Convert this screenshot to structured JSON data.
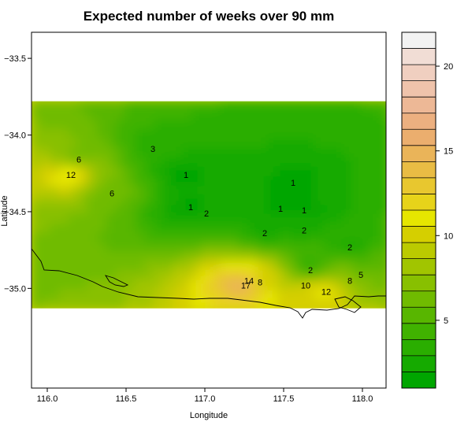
{
  "chart_data": {
    "type": "filled-contour",
    "title": "Expected number of weeks over 90 mm",
    "xlabel": "Longitude",
    "ylabel": "Latitude",
    "xlim": [
      115.9,
      118.15
    ],
    "ylim": [
      -35.65,
      -33.33
    ],
    "xticks": [
      "116.0",
      "116.5",
      "117.0",
      "117.5",
      "118.0"
    ],
    "yticks": [
      "-33.5",
      "-34.0",
      "-34.5",
      "-35.0"
    ],
    "data_extent": {
      "lon": [
        115.9,
        118.15
      ],
      "lat": [
        -35.13,
        -33.78
      ]
    },
    "colorbar": {
      "range": [
        1,
        22
      ],
      "ticks": [
        "5",
        "10",
        "15",
        "20"
      ],
      "colors": [
        "#00a600",
        "#15aa00",
        "#2aae00",
        "#40b200",
        "#58b600",
        "#70bb00",
        "#88c000",
        "#a1c500",
        "#bbca00",
        "#d5cf00",
        "#e6e600",
        "#e7d31a",
        "#e8c72f",
        "#e9bc44",
        "#eab459",
        "#ebae6e",
        "#ecb080",
        "#edb896",
        "#efc3ab",
        "#f0cfc0",
        "#f1ddd5",
        "#f2f2f2"
      ]
    },
    "contour_labels": [
      {
        "text": "1",
        "lon": 116.88,
        "lat": -34.26
      },
      {
        "text": "1",
        "lon": 116.91,
        "lat": -34.47
      },
      {
        "text": "1",
        "lon": 117.56,
        "lat": -34.31
      },
      {
        "text": "1",
        "lon": 117.48,
        "lat": -34.48
      },
      {
        "text": "1",
        "lon": 117.63,
        "lat": -34.49
      },
      {
        "text": "2",
        "lon": 117.01,
        "lat": -34.51
      },
      {
        "text": "2",
        "lon": 117.38,
        "lat": -34.64
      },
      {
        "text": "2",
        "lon": 117.63,
        "lat": -34.62
      },
      {
        "text": "2",
        "lon": 117.92,
        "lat": -34.73
      },
      {
        "text": "2",
        "lon": 117.67,
        "lat": -34.88
      },
      {
        "text": "3",
        "lon": 116.67,
        "lat": -34.09
      },
      {
        "text": "5",
        "lon": 117.99,
        "lat": -34.91
      },
      {
        "text": "6",
        "lon": 116.2,
        "lat": -34.16
      },
      {
        "text": "6",
        "lon": 116.41,
        "lat": -34.38
      },
      {
        "text": "8",
        "lon": 117.92,
        "lat": -34.95
      },
      {
        "text": "8",
        "lon": 117.35,
        "lat": -34.96
      },
      {
        "text": "10",
        "lon": 117.64,
        "lat": -34.98
      },
      {
        "text": "12",
        "lon": 116.15,
        "lat": -34.26
      },
      {
        "text": "12",
        "lon": 117.77,
        "lat": -35.02
      },
      {
        "text": "14",
        "lon": 117.28,
        "lat": -34.95
      },
      {
        "text": "17",
        "lon": 117.26,
        "lat": -34.98
      }
    ]
  }
}
